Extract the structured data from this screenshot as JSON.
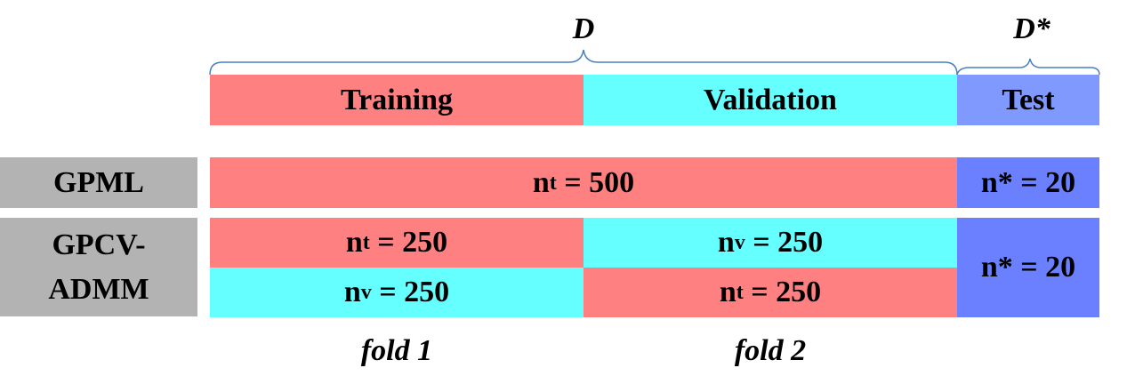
{
  "colors": {
    "training": "#ff8080",
    "validation": "#66ffff",
    "test_header": "#8099ff",
    "test_cell": "#6b80ff",
    "row_header": "#b3b3b3",
    "brace": "#4a7fc1"
  },
  "top_labels": {
    "d": "D",
    "d_star": "D*"
  },
  "header": {
    "training": "Training",
    "validation": "Validation",
    "test": "Test"
  },
  "rows": {
    "gpml": {
      "label": "GPML",
      "train_var": "n",
      "train_sub": "t",
      "train_value": " = 500",
      "test_value": "n* = 20"
    },
    "gpcv": {
      "label_line1": "GPCV-",
      "label_line2": "ADMM",
      "f1_top_var": "n",
      "f1_top_sub": "t",
      "f1_top_value": " = 250",
      "f2_top_var": "n",
      "f2_top_sub": "v",
      "f2_top_value": " = 250",
      "f1_bot_var": "n",
      "f1_bot_sub": "v",
      "f1_bot_value": " = 250",
      "f2_bot_var": "n",
      "f2_bot_sub": "t",
      "f2_bot_value": " = 250",
      "test_value": "n* = 20"
    }
  },
  "fold_labels": {
    "fold1": "fold 1",
    "fold2": "fold 2"
  }
}
